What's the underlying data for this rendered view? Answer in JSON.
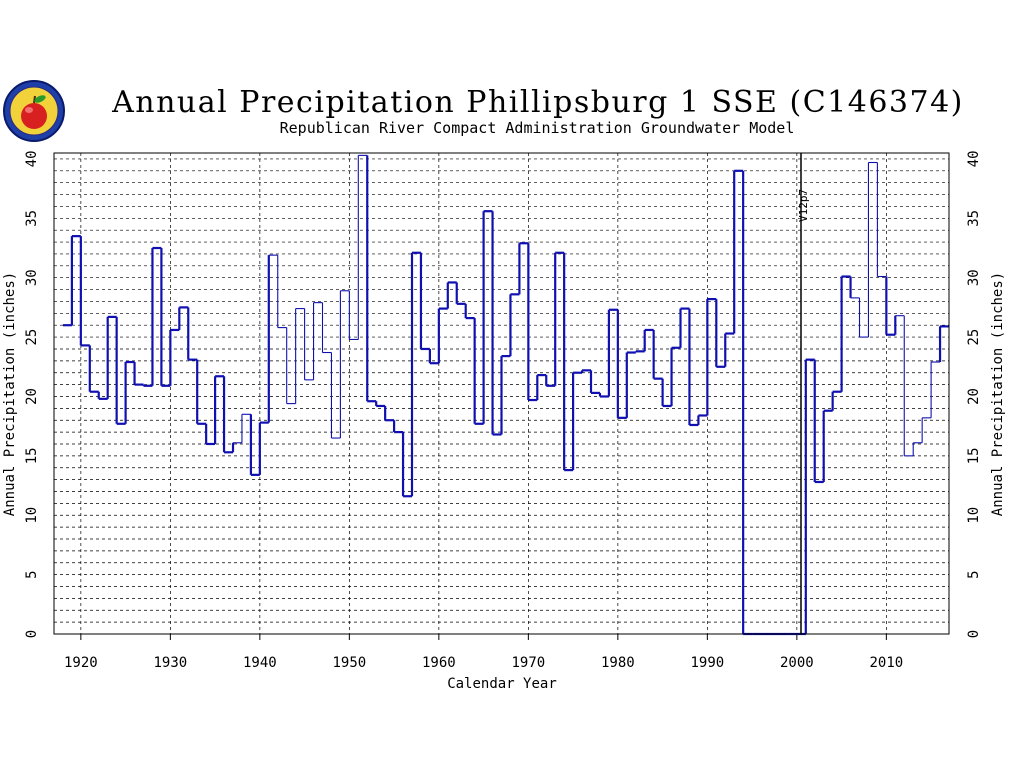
{
  "chart_data": {
    "type": "line",
    "step": true,
    "title": "Annual Precipitation Phillipsburg 1 SSE (C146374)",
    "subtitle": "Republican River Compact Administration Groundwater Model",
    "xlabel": "Calendar Year",
    "ylabel_left": "Annual Precipitation (inches)",
    "ylabel_right": "Annual Precipitation (inches)",
    "xlim": [
      1917,
      1934,
      2017
    ],
    "xlim_note": "",
    "x_range": [
      1917,
      2017
    ],
    "ylim": [
      0,
      40.5
    ],
    "x_ticks": [
      1920,
      1930,
      1940,
      1950,
      1960,
      1970,
      1980,
      1990,
      2000,
      2010
    ],
    "y_ticks": [
      0,
      5,
      10,
      15,
      20,
      25,
      30,
      35,
      40
    ],
    "grid": true,
    "annotation": {
      "x": 2001,
      "text": "V12p7"
    },
    "series": [
      {
        "color": "#1010b0",
        "years": [
          1918,
          1919,
          1920,
          1921,
          1922,
          1923,
          1924,
          1925,
          1926,
          1927,
          1928,
          1929,
          1930,
          1931,
          1932,
          1933,
          1934,
          1935,
          1936,
          1937,
          1938,
          1939,
          1940,
          1941,
          1942,
          1943,
          1944,
          1945,
          1946,
          1947,
          1948,
          1949,
          1950,
          1951,
          1952,
          1953,
          1954,
          1955,
          1956,
          1957,
          1958,
          1959,
          1960,
          1961,
          1962,
          1963,
          1964,
          1965,
          1966,
          1967,
          1968,
          1969,
          1970,
          1971,
          1972,
          1973,
          1974,
          1975,
          1976,
          1977,
          1978,
          1979,
          1980,
          1981,
          1982,
          1983,
          1984,
          1985,
          1986,
          1987,
          1988,
          1989,
          1990,
          1991,
          1992,
          1993,
          1994,
          1995,
          1996,
          1997,
          1998,
          1999,
          2000,
          2001,
          2002,
          2003,
          2004,
          2005,
          2006,
          2007,
          2008,
          2009,
          2010,
          2011,
          2012,
          2013,
          2014,
          2015,
          2016
        ],
        "values": [
          26.0,
          33.5,
          24.3,
          20.4,
          19.8,
          26.7,
          17.7,
          22.9,
          21.0,
          20.9,
          32.5,
          20.9,
          25.6,
          27.5,
          23.1,
          17.7,
          16.0,
          21.7,
          15.3,
          16.1,
          18.5,
          13.4,
          17.8,
          31.9,
          25.8,
          19.4,
          27.4,
          21.4,
          27.9,
          23.7,
          16.5,
          28.9,
          24.8,
          40.3,
          19.6,
          19.2,
          18.0,
          17.0,
          11.6,
          32.1,
          24.0,
          22.8,
          27.4,
          29.6,
          27.8,
          26.6,
          17.7,
          35.6,
          16.8,
          23.4,
          28.6,
          32.9,
          19.7,
          21.8,
          20.9,
          32.1,
          13.8,
          22.0,
          22.2,
          20.3,
          20.0,
          27.3,
          18.2,
          23.7,
          23.8,
          25.6,
          21.5,
          19.2,
          24.1,
          27.4,
          17.6,
          18.4,
          28.2,
          22.5,
          25.3,
          39.0,
          0,
          0,
          0,
          0,
          0,
          0,
          0,
          23.1,
          12.8,
          18.8,
          20.4,
          30.1,
          28.3,
          25.0,
          39.7,
          30.1,
          25.2,
          26.8,
          15.0,
          16.1,
          18.2,
          22.9,
          25.9
        ],
        "thick_flags": [
          1,
          1,
          1,
          1,
          1,
          1,
          1,
          1,
          1,
          1,
          1,
          1,
          1,
          1,
          1,
          1,
          1,
          1,
          1,
          0,
          0,
          1,
          1,
          0,
          0,
          0,
          0,
          0,
          0,
          0,
          0,
          0,
          0,
          0,
          1,
          1,
          1,
          1,
          1,
          1,
          1,
          1,
          1,
          1,
          1,
          1,
          1,
          1,
          1,
          1,
          1,
          1,
          1,
          1,
          1,
          1,
          1,
          1,
          1,
          1,
          1,
          1,
          1,
          1,
          1,
          1,
          1,
          1,
          1,
          1,
          1,
          1,
          1,
          1,
          1,
          1,
          1,
          1,
          1,
          1,
          1,
          1,
          1,
          1,
          1,
          1,
          1,
          1,
          0,
          0,
          0,
          0,
          1,
          0,
          0,
          0,
          0,
          0,
          1
        ]
      }
    ]
  },
  "logo": {
    "name": "kansas-state-seal-apple-logo"
  }
}
